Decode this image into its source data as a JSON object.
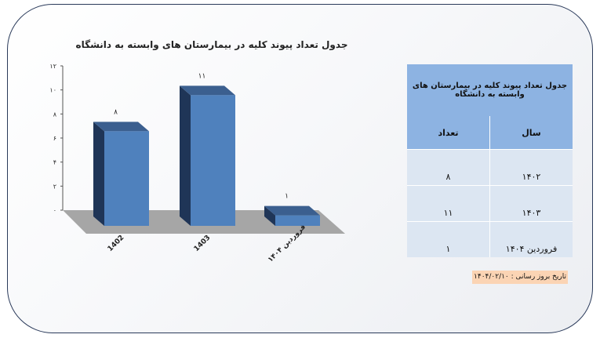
{
  "chart_data": {
    "type": "bar",
    "title": "جدول تعداد پیوند کلیه در بیمارستان های وابسته به دانشگاه",
    "categories": [
      "1402",
      "1403",
      "فروردین ۱۴۰۴"
    ],
    "values": [
      8,
      11,
      1
    ],
    "data_labels": [
      "۸",
      "۱۱",
      "۱"
    ],
    "yticks": [
      0,
      2,
      4,
      6,
      8,
      10,
      12
    ],
    "ytick_labels": [
      "۰",
      "۲",
      "۴",
      "۶",
      "۸",
      "۱۰",
      "۱۲"
    ],
    "ylim": [
      0,
      12
    ],
    "bar_color": "#4f81bd",
    "floor_color": "#a6a6a6"
  },
  "table": {
    "caption": "جدول تعداد پیوند کلیه در بیمارستان های وابسته به دانشگاه",
    "headers": {
      "year": "سال",
      "count": "تعداد"
    },
    "rows": [
      {
        "year": "۱۴۰۲",
        "count": "۸"
      },
      {
        "year": "۱۴۰۳",
        "count": "۱۱"
      },
      {
        "year": "فروردین ۱۴۰۴",
        "count": "۱"
      }
    ]
  },
  "update_note": "تاریخ بروز رسانی : ۱۴۰۴/۰۲/۱۰"
}
